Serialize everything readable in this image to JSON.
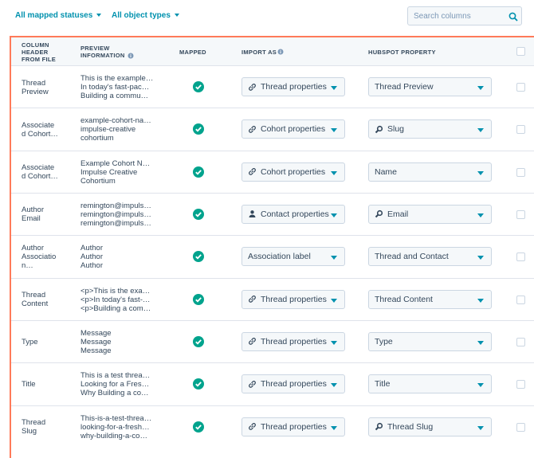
{
  "filters": {
    "status": "All mapped statuses",
    "object_types": "All object types",
    "search_placeholder": "Search columns"
  },
  "table": {
    "headers": {
      "column_header": "COLUMN HEADER FROM FILE",
      "preview": "PREVIEW INFORMATION",
      "mapped": "MAPPED",
      "import_as": "IMPORT AS",
      "property": "HUBSPOT PROPERTY"
    },
    "rows": [
      {
        "column_header": "Thread Preview",
        "preview": [
          "This is the example…",
          "In today's fast-pac…",
          "Building a commu…"
        ],
        "import_as": {
          "label": "Thread properties",
          "icon": "link"
        },
        "property": {
          "label": "Thread Preview",
          "icon": "none"
        }
      },
      {
        "column_header": "Associated Cohort…",
        "preview": [
          "example-cohort-na…",
          "impulse-creative",
          "cohortium"
        ],
        "import_as": {
          "label": "Cohort properties",
          "icon": "link"
        },
        "property": {
          "label": "Slug",
          "icon": "search"
        }
      },
      {
        "column_header": "Associated Cohort…",
        "preview": [
          "Example Cohort N…",
          "Impulse Creative",
          "Cohortium"
        ],
        "import_as": {
          "label": "Cohort properties",
          "icon": "link"
        },
        "property": {
          "label": "Name",
          "icon": "none"
        }
      },
      {
        "column_header": "Author Email",
        "preview": [
          "remington@impuls…",
          "remington@impuls…",
          "remington@impuls…"
        ],
        "import_as": {
          "label": "Contact properties",
          "icon": "person"
        },
        "property": {
          "label": "Email",
          "icon": "search"
        }
      },
      {
        "column_header": "Author Association…",
        "preview": [
          "Author",
          "Author",
          "Author"
        ],
        "import_as": {
          "label": "Association label",
          "icon": "none"
        },
        "property": {
          "label": "Thread and Contact",
          "icon": "none"
        }
      },
      {
        "column_header": "Thread Content",
        "preview": [
          "<p>This is the exa…",
          "<p>In today's fast-…",
          "<p>Building a com…"
        ],
        "import_as": {
          "label": "Thread properties",
          "icon": "link"
        },
        "property": {
          "label": "Thread Content",
          "icon": "none"
        }
      },
      {
        "column_header": "Type",
        "preview": [
          "Message",
          "Message",
          "Message"
        ],
        "import_as": {
          "label": "Thread properties",
          "icon": "link"
        },
        "property": {
          "label": "Type",
          "icon": "none"
        }
      },
      {
        "column_header": "Title",
        "preview": [
          "This is a test threa…",
          "Looking for a Fres…",
          "Why Building a co…"
        ],
        "import_as": {
          "label": "Thread properties",
          "icon": "link"
        },
        "property": {
          "label": "Title",
          "icon": "none"
        }
      },
      {
        "column_header": "Thread Slug",
        "preview": [
          "This-is-a-test-threa…",
          "looking-for-a-fresh…",
          "why-building-a-co…"
        ],
        "import_as": {
          "label": "Thread properties",
          "icon": "link"
        },
        "property": {
          "label": "Thread Slug",
          "icon": "search"
        }
      }
    ]
  }
}
